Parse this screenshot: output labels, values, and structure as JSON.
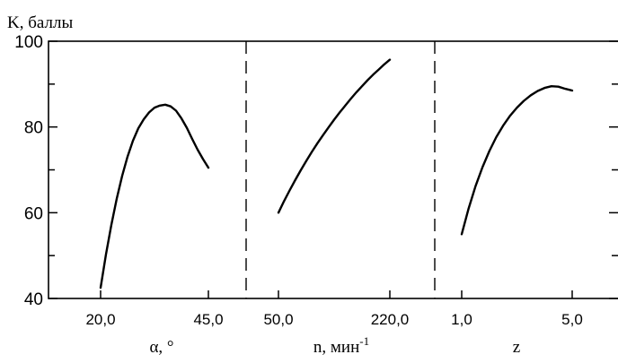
{
  "chart_data": {
    "type": "line",
    "ylabel": "K, баллы",
    "ylim": [
      40,
      100
    ],
    "yticks": [
      40,
      60,
      80,
      100
    ],
    "y_tick_labels": [
      "40",
      "60",
      "80",
      "100"
    ],
    "grid": false,
    "panels": [
      {
        "xlabel": "α, °",
        "xlabel_main": "α",
        "xlabel_unit": ", °",
        "xlim": [
          20.0,
          45.0
        ],
        "x_tick_labels": [
          "20,0",
          "45,0"
        ],
        "series": [
          {
            "x": [
              20.0,
              21.25,
              22.5,
              23.75,
              25.0,
              26.25,
              27.5,
              28.75,
              30.0,
              31.25,
              32.5,
              33.75,
              35.0,
              36.25,
              37.5,
              38.75,
              40.0,
              41.25,
              42.5,
              43.75,
              45.0
            ],
            "y": [
              42.5,
              50.3,
              57.2,
              63.3,
              68.6,
              73.1,
              76.8,
              79.7,
              81.8,
              83.4,
              84.5,
              85.0,
              85.2,
              84.8,
              83.8,
              82.0,
              79.8,
              77.2,
              74.7,
              72.5,
              70.5
            ]
          }
        ]
      },
      {
        "xlabel": "n, мин-1",
        "xlabel_main": "n",
        "xlabel_unit": ", мин",
        "xlabel_sup": "-1",
        "xlim": [
          50.0,
          220.0
        ],
        "x_tick_labels": [
          "50,0",
          "220,0"
        ],
        "series": [
          {
            "x": [
              50.0,
              58.5,
              67.0,
              75.5,
              84.0,
              92.5,
              101.0,
              109.5,
              118.0,
              126.5,
              135.0,
              143.5,
              152.0,
              160.5,
              169.0,
              177.5,
              186.0,
              194.5,
              203.0,
              211.5,
              220.0
            ],
            "y": [
              60.0,
              62.7,
              65.2,
              67.6,
              69.9,
              72.1,
              74.2,
              76.2,
              78.1,
              79.9,
              81.7,
              83.4,
              85.0,
              86.6,
              88.1,
              89.5,
              90.9,
              92.2,
              93.4,
              94.6,
              95.7
            ]
          }
        ]
      },
      {
        "xlabel": "z",
        "xlabel_main": "z",
        "xlim": [
          1.0,
          5.0
        ],
        "x_tick_labels": [
          "1,0",
          "5,0"
        ],
        "series": [
          {
            "x": [
              1.0,
              1.25,
              1.5,
              1.75,
              2.0,
              2.25,
              2.5,
              2.75,
              3.0,
              3.25,
              3.5,
              3.75,
              4.0,
              4.25,
              4.5,
              4.75,
              5.0
            ],
            "y": [
              55.0,
              61.0,
              66.2,
              70.6,
              74.4,
              77.6,
              80.3,
              82.6,
              84.5,
              86.1,
              87.4,
              88.4,
              89.1,
              89.5,
              89.4,
              88.9,
              88.5
            ]
          }
        ]
      }
    ]
  }
}
